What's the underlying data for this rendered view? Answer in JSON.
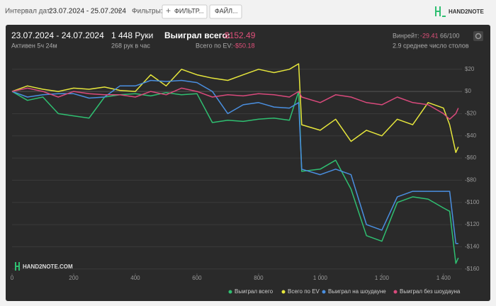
{
  "toolbar": {
    "date_label": "Интервал дат:",
    "date_range": "23.07.2024 - 25.07.2024",
    "filters_label": "Фильтры:",
    "filter_button": "ФИЛЬТР...",
    "file_button": "ФАЙЛ...",
    "logo": "HAND2NOTE"
  },
  "summary": {
    "period": "23.07.2024 - 24.07.2024",
    "active": "Активен 5ч 24м",
    "hands": "1 448 Руки",
    "hands_per_hour": "268 рук в час",
    "won_label": "Выиграл всего:",
    "won_value": "-$152.49",
    "ev_label": "Всего по EV:",
    "ev_value": "-$50.18",
    "winrate_label": "Винрейт:",
    "winrate_value": "-29.41",
    "winrate_sample": "66/100",
    "tables": "2.9 среднее число столов"
  },
  "watermark": "HAND2NOTE.COM",
  "chart_data": {
    "type": "line",
    "x": [
      0,
      50,
      100,
      150,
      200,
      250,
      300,
      350,
      400,
      450,
      500,
      550,
      600,
      650,
      700,
      750,
      800,
      850,
      900,
      930,
      940,
      1000,
      1050,
      1100,
      1150,
      1200,
      1250,
      1300,
      1350,
      1400,
      1420,
      1440,
      1448
    ],
    "series": [
      {
        "name": "Выиграл всего",
        "color": "#2fbf71",
        "values": [
          0,
          -8,
          -5,
          -20,
          -22,
          -24,
          -5,
          -3,
          -2,
          -4,
          -1,
          -3,
          -2,
          -28,
          -26,
          -27,
          -25,
          -24,
          -26,
          0,
          -72,
          -70,
          -62,
          -88,
          -130,
          -135,
          -100,
          -95,
          -97,
          -105,
          -108,
          -155,
          -150
        ]
      },
      {
        "name": "Всего по EV",
        "color": "#e6e63c",
        "values": [
          0,
          5,
          2,
          0,
          3,
          2,
          4,
          1,
          0,
          15,
          5,
          20,
          15,
          12,
          10,
          15,
          20,
          17,
          20,
          25,
          -30,
          -35,
          -25,
          -45,
          -35,
          -40,
          -25,
          -30,
          -10,
          -15,
          -30,
          -55,
          -50
        ]
      },
      {
        "name": "Выиграл на шоудауне",
        "color": "#4a8fe0",
        "values": [
          0,
          -5,
          -3,
          -2,
          -2,
          -6,
          -5,
          5,
          5,
          10,
          9,
          10,
          8,
          0,
          -20,
          -12,
          -10,
          -14,
          -15,
          -10,
          -70,
          -75,
          -70,
          -75,
          -120,
          -125,
          -95,
          -90,
          -90,
          -90,
          -90,
          -137,
          -137
        ]
      },
      {
        "name": "Выиграл без шоудауна",
        "color": "#d94a7c",
        "values": [
          0,
          3,
          0,
          -5,
          0,
          -2,
          -3,
          -3,
          -5,
          0,
          -3,
          3,
          0,
          -5,
          -3,
          -4,
          -2,
          -3,
          -5,
          0,
          -5,
          -10,
          -3,
          -5,
          -10,
          -12,
          -5,
          -10,
          -12,
          -20,
          -25,
          -20,
          -15
        ]
      }
    ],
    "xlim": [
      0,
      1460
    ],
    "xticks": [
      0,
      200,
      400,
      600,
      800,
      {
        "value": 1000,
        "label": "1 000"
      },
      {
        "value": 1200,
        "label": "1 200"
      },
      {
        "value": 1400,
        "label": "1 400"
      }
    ],
    "ylim": [
      -164,
      32
    ],
    "yticks": [
      {
        "value": 20,
        "label": "$20"
      },
      {
        "value": 0,
        "label": "$0"
      },
      {
        "value": -20,
        "label": "-$20"
      },
      {
        "value": -40,
        "label": "-$40"
      },
      {
        "value": -60,
        "label": "-$60"
      },
      {
        "value": -80,
        "label": "-$80"
      },
      {
        "value": -100,
        "label": "-$100"
      },
      {
        "value": -120,
        "label": "-$120"
      },
      {
        "value": -140,
        "label": "-$140"
      },
      {
        "value": -160,
        "label": "-$160"
      }
    ],
    "grid": true,
    "legend": "bottom-right"
  }
}
